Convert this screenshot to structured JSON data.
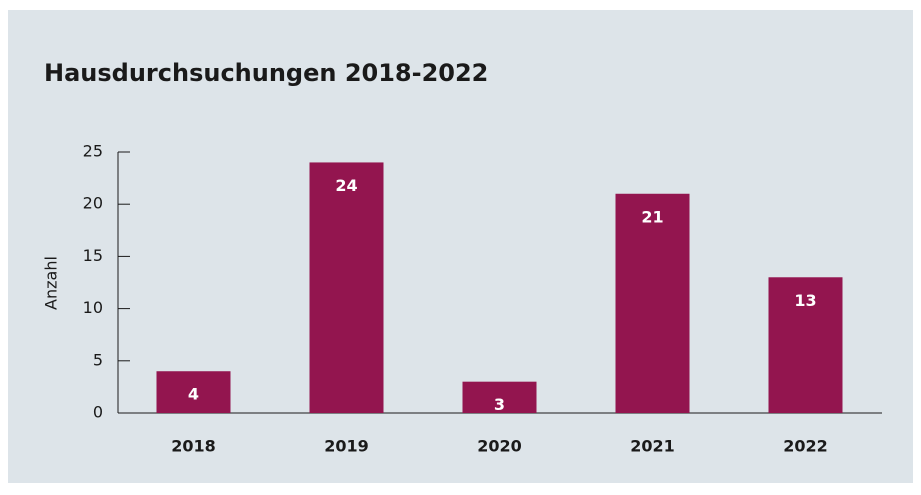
{
  "chart_data": {
    "type": "bar",
    "title": "Hausdurchsuchungen 2018-2022",
    "y_label": "Anzahl",
    "categories": [
      "2018",
      "2019",
      "2020",
      "2021",
      "2022"
    ],
    "values": [
      4,
      24,
      3,
      21,
      13
    ],
    "color": "#93154f",
    "ylim": [
      0,
      25
    ],
    "yticks": [
      0,
      5,
      10,
      15,
      20,
      25
    ],
    "grid": false
  }
}
